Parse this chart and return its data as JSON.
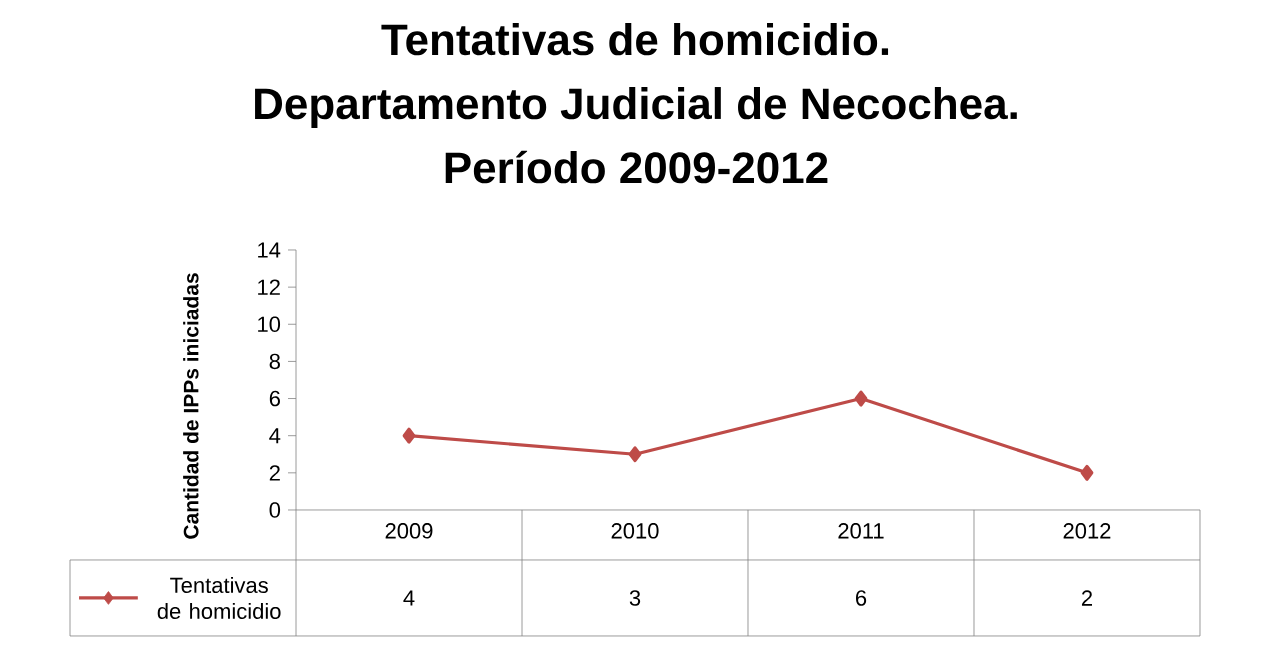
{
  "chart_data": {
    "type": "line",
    "title": "Tentativas de homicidio. Departamento Judicial de Necochea. Período  2009-2012",
    "ylabel": "Cantidad de IPPs iniciadas",
    "categories": [
      "2009",
      "2010",
      "2011",
      "2012"
    ],
    "series": [
      {
        "name": "Tentativas de homicidio",
        "color": "#be4b48",
        "values": [
          4,
          3,
          6,
          2
        ]
      }
    ],
    "ylim": [
      0,
      14
    ],
    "yticks": [
      0,
      2,
      4,
      6,
      8,
      10,
      12,
      14
    ],
    "data_labels": true,
    "legend": "bottom left",
    "marker": "diamond",
    "line_style": "solid",
    "grid": false
  }
}
